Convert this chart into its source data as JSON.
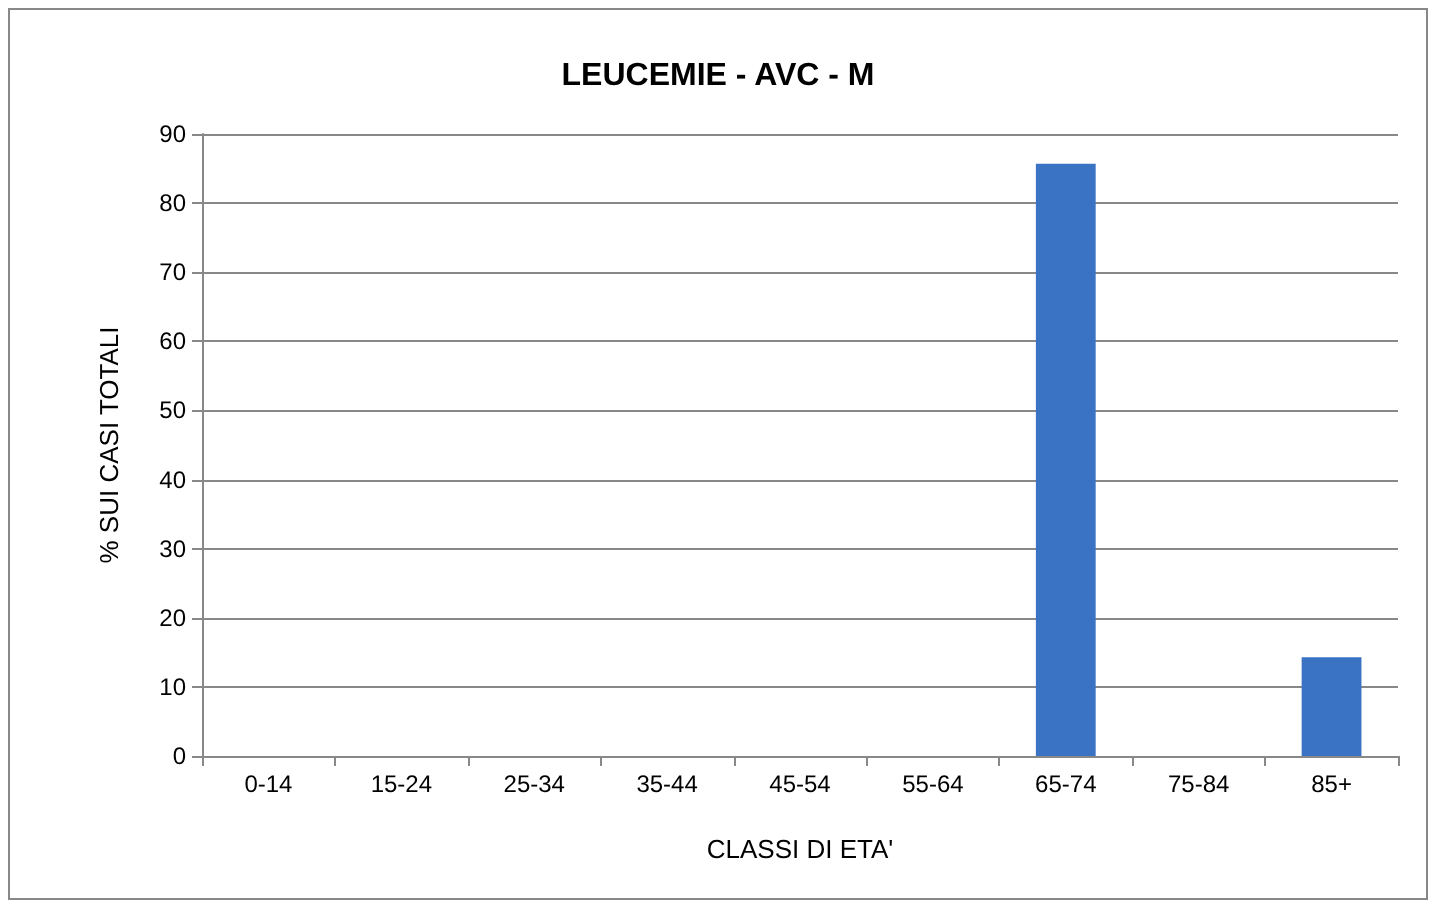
{
  "chart_data": {
    "type": "bar",
    "title": "LEUCEMIE - AVC - M",
    "xlabel": "CLASSI DI ETA'",
    "ylabel": "% SUI CASI TOTALI",
    "categories": [
      "0-14",
      "15-24",
      "25-34",
      "35-44",
      "45-54",
      "55-64",
      "65-74",
      "75-84",
      "85+"
    ],
    "values": [
      0,
      0,
      0,
      0,
      0,
      0,
      85.7,
      0,
      14.3
    ],
    "color": "#3b73c4",
    "ylim": [
      0,
      90
    ],
    "yticks": [
      0,
      10,
      20,
      30,
      40,
      50,
      60,
      70,
      80,
      90
    ],
    "grid": "y"
  }
}
